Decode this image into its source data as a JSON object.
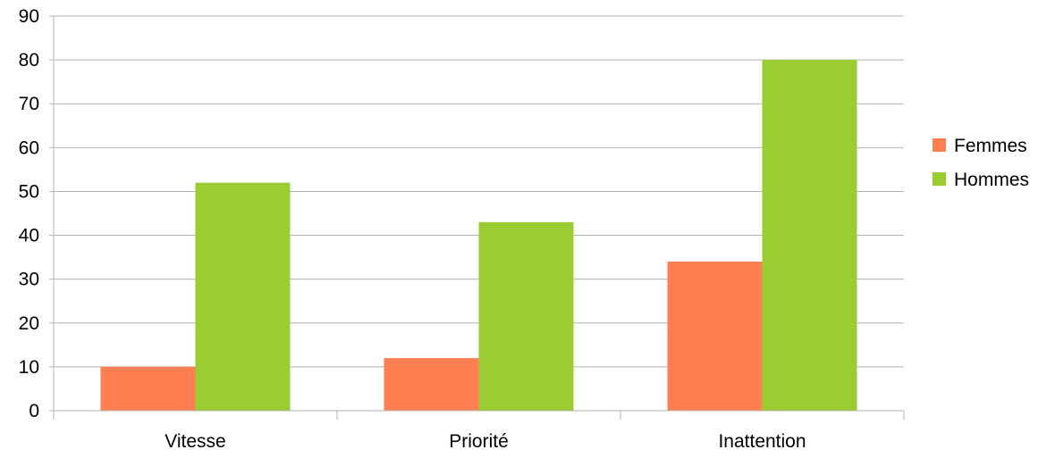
{
  "chart_data": {
    "type": "bar",
    "title": "",
    "xlabel": "",
    "ylabel": "",
    "categories": [
      "Vitesse",
      "Priorité",
      "Inattention"
    ],
    "series": [
      {
        "name": "Femmes",
        "values": [
          10,
          12,
          34
        ],
        "color": "#ff7f50"
      },
      {
        "name": "Hommes",
        "values": [
          52,
          43,
          80
        ],
        "color": "#9acd32"
      }
    ],
    "ylim": [
      0,
      90
    ],
    "yticks": [
      0,
      10,
      20,
      30,
      40,
      50,
      60,
      70,
      80,
      90
    ],
    "grid": true,
    "legend_position": "right"
  }
}
